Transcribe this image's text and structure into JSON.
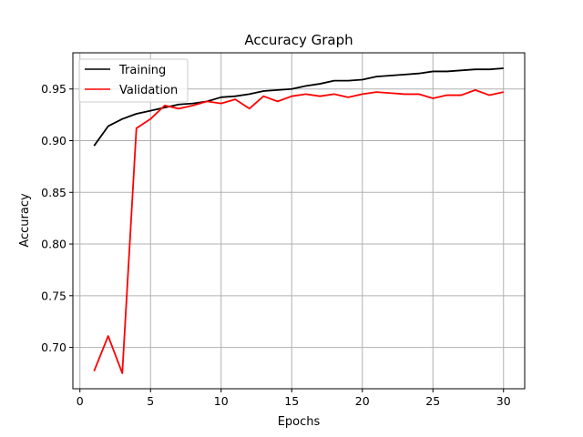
{
  "chart_data": {
    "type": "line",
    "title": "Accuracy Graph",
    "xlabel": "Epochs",
    "ylabel": "Accuracy",
    "xlim": [
      -0.5,
      31.5
    ],
    "ylim": [
      0.66,
      0.985
    ],
    "xticks": [
      0,
      5,
      10,
      15,
      20,
      25,
      30
    ],
    "yticks": [
      0.7,
      0.75,
      0.8,
      0.85,
      0.9,
      0.95
    ],
    "grid": true,
    "legend_position": "upper-left",
    "x": [
      1,
      2,
      3,
      4,
      5,
      6,
      7,
      8,
      9,
      10,
      11,
      12,
      13,
      14,
      15,
      16,
      17,
      18,
      19,
      20,
      21,
      22,
      23,
      24,
      25,
      26,
      27,
      28,
      29,
      30
    ],
    "series": [
      {
        "name": "Training",
        "color": "#000000",
        "values": [
          0.895,
          0.914,
          0.921,
          0.926,
          0.929,
          0.932,
          0.935,
          0.936,
          0.938,
          0.942,
          0.943,
          0.945,
          0.948,
          0.949,
          0.95,
          0.953,
          0.955,
          0.958,
          0.958,
          0.959,
          0.962,
          0.963,
          0.964,
          0.965,
          0.967,
          0.967,
          0.968,
          0.969,
          0.969,
          0.97
        ]
      },
      {
        "name": "Validation",
        "color": "#ff0000",
        "values": [
          0.677,
          0.711,
          0.675,
          0.912,
          0.921,
          0.934,
          0.931,
          0.934,
          0.938,
          0.936,
          0.94,
          0.931,
          0.943,
          0.938,
          0.943,
          0.945,
          0.943,
          0.945,
          0.942,
          0.945,
          0.947,
          0.946,
          0.945,
          0.945,
          0.941,
          0.944,
          0.944,
          0.949,
          0.944,
          0.947
        ]
      }
    ]
  }
}
